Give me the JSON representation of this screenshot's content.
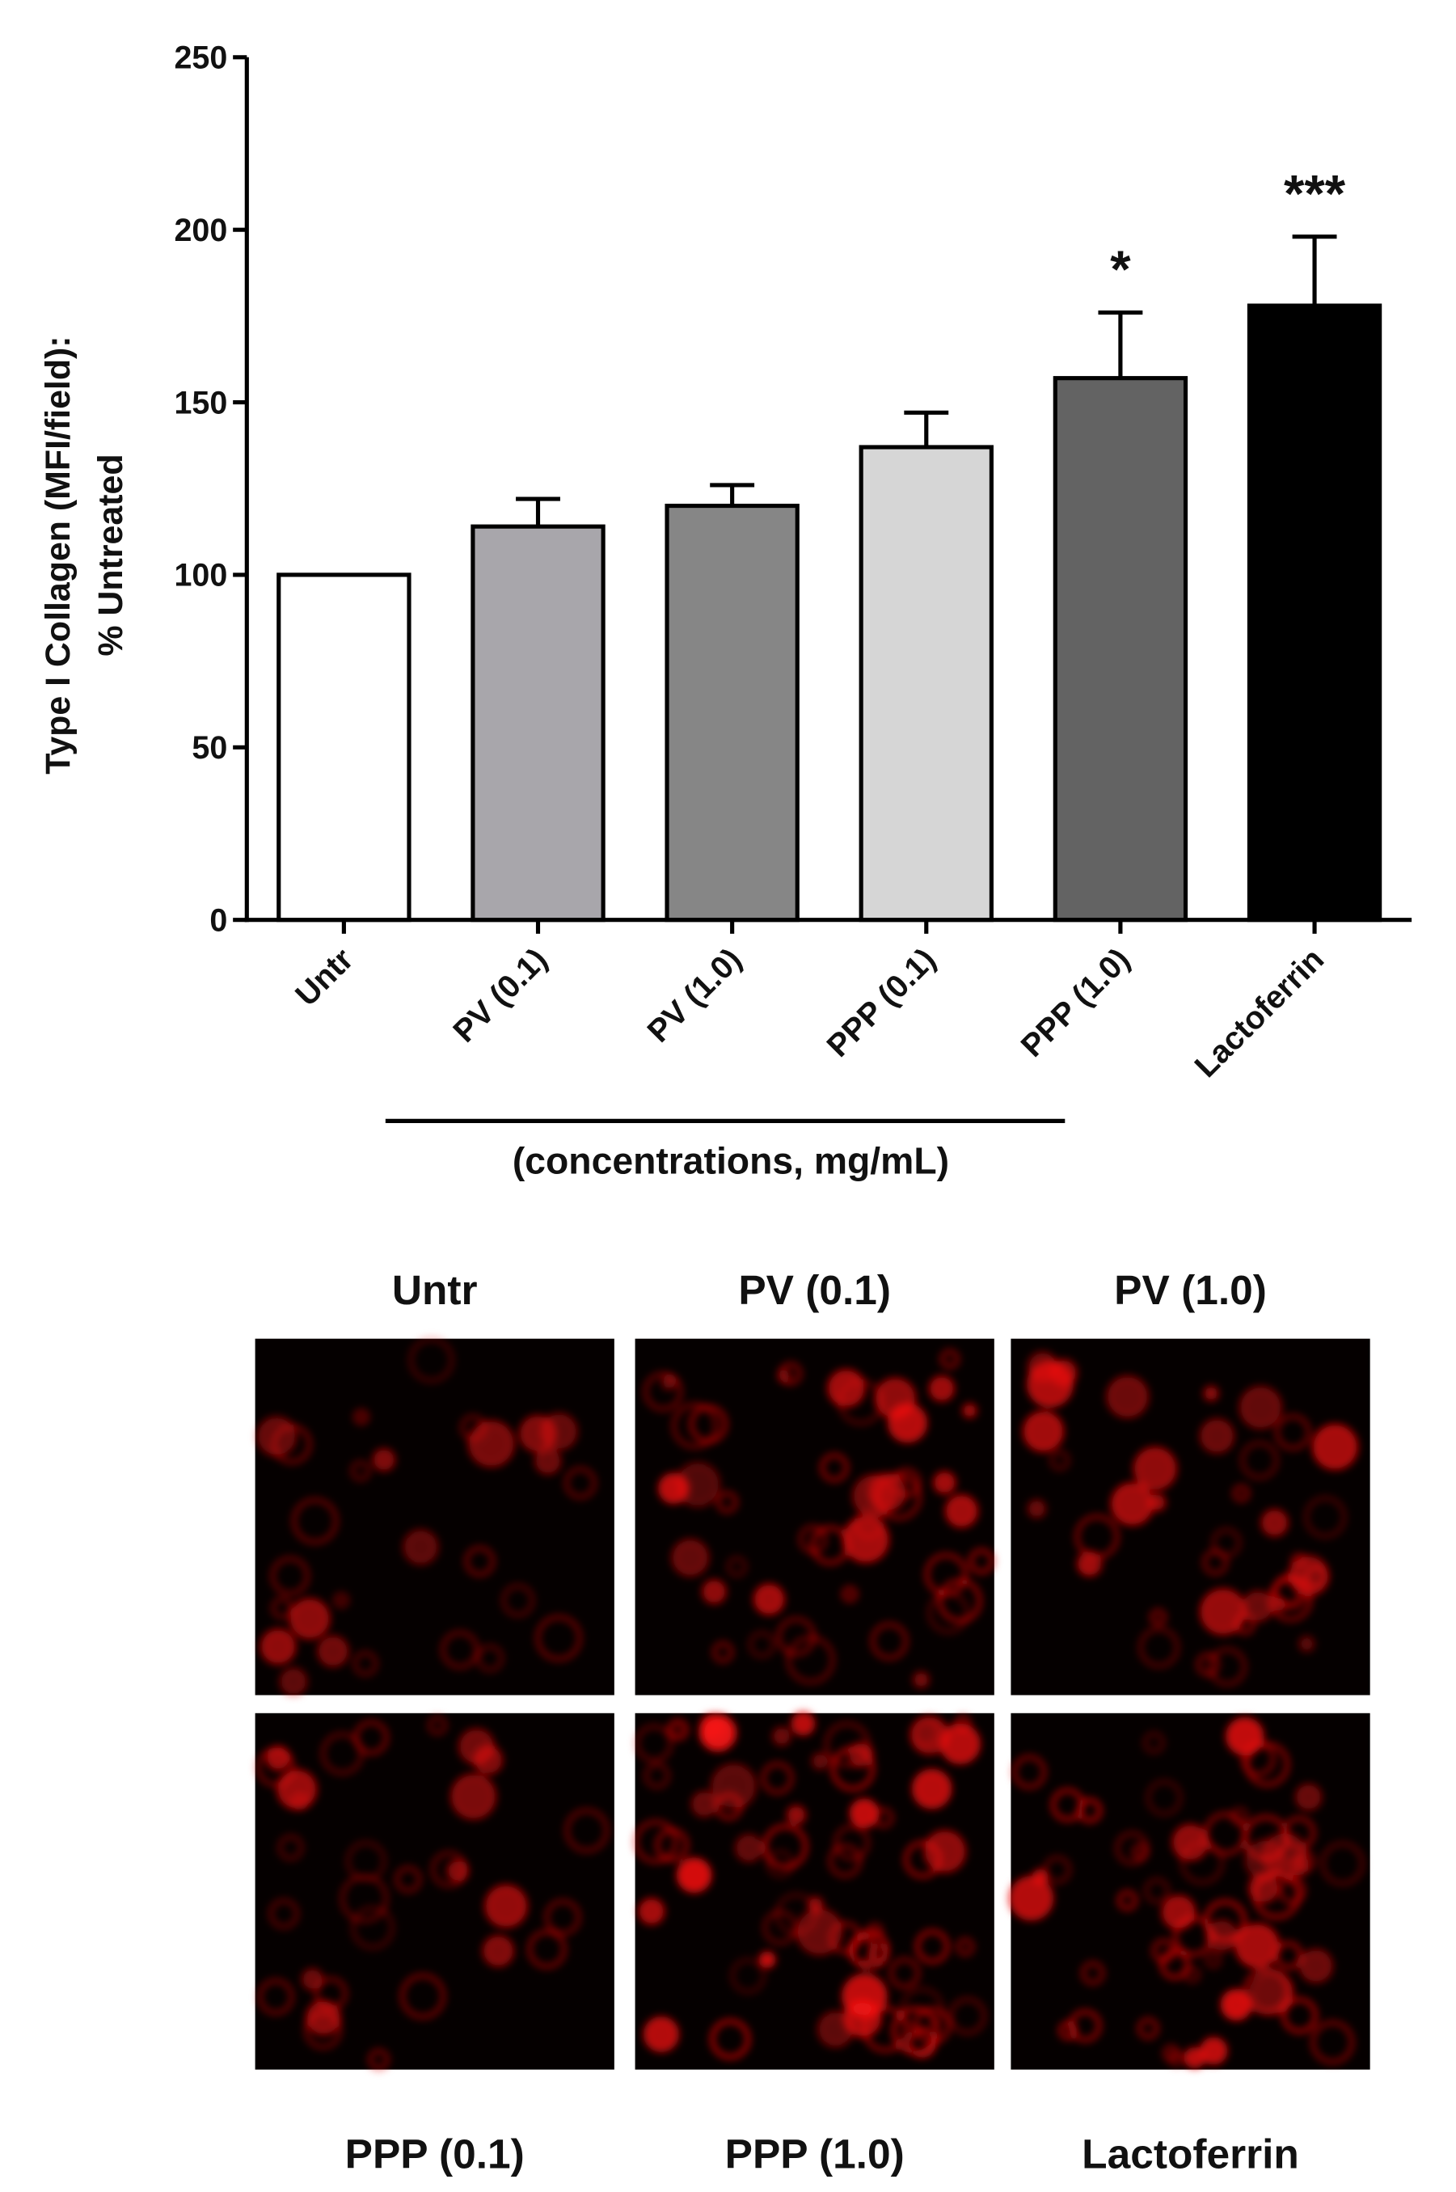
{
  "chart_data": {
    "type": "bar",
    "ylabel": [
      "Type I Collagen (MFI/field):",
      "%  Untreated"
    ],
    "xlabel": "(concentrations, mg/mL)",
    "categories": [
      "Untr",
      "PV (0.1)",
      "PV (1.0)",
      "PPP (0.1)",
      "PPP (1.0)",
      "Lactoferrin"
    ],
    "values": [
      100,
      114,
      120,
      137,
      157,
      178
    ],
    "errors": [
      0,
      8,
      6,
      10,
      19,
      20
    ],
    "colors": [
      "#ffffff",
      "#a8a6ab",
      "#868686",
      "#d6d6d6",
      "#636363",
      "#000000"
    ],
    "significance": [
      null,
      null,
      null,
      null,
      "*",
      "***"
    ],
    "ylim": [
      0,
      250
    ],
    "yticks": [
      0,
      50,
      100,
      150,
      200,
      250
    ]
  },
  "panels": [
    {
      "label": "Untr"
    },
    {
      "label": "PV (0.1)"
    },
    {
      "label": "PV (1.0)"
    },
    {
      "label": "PPP (0.1)"
    },
    {
      "label": "PPP (1.0)"
    },
    {
      "label": "Lactoferrin"
    }
  ]
}
